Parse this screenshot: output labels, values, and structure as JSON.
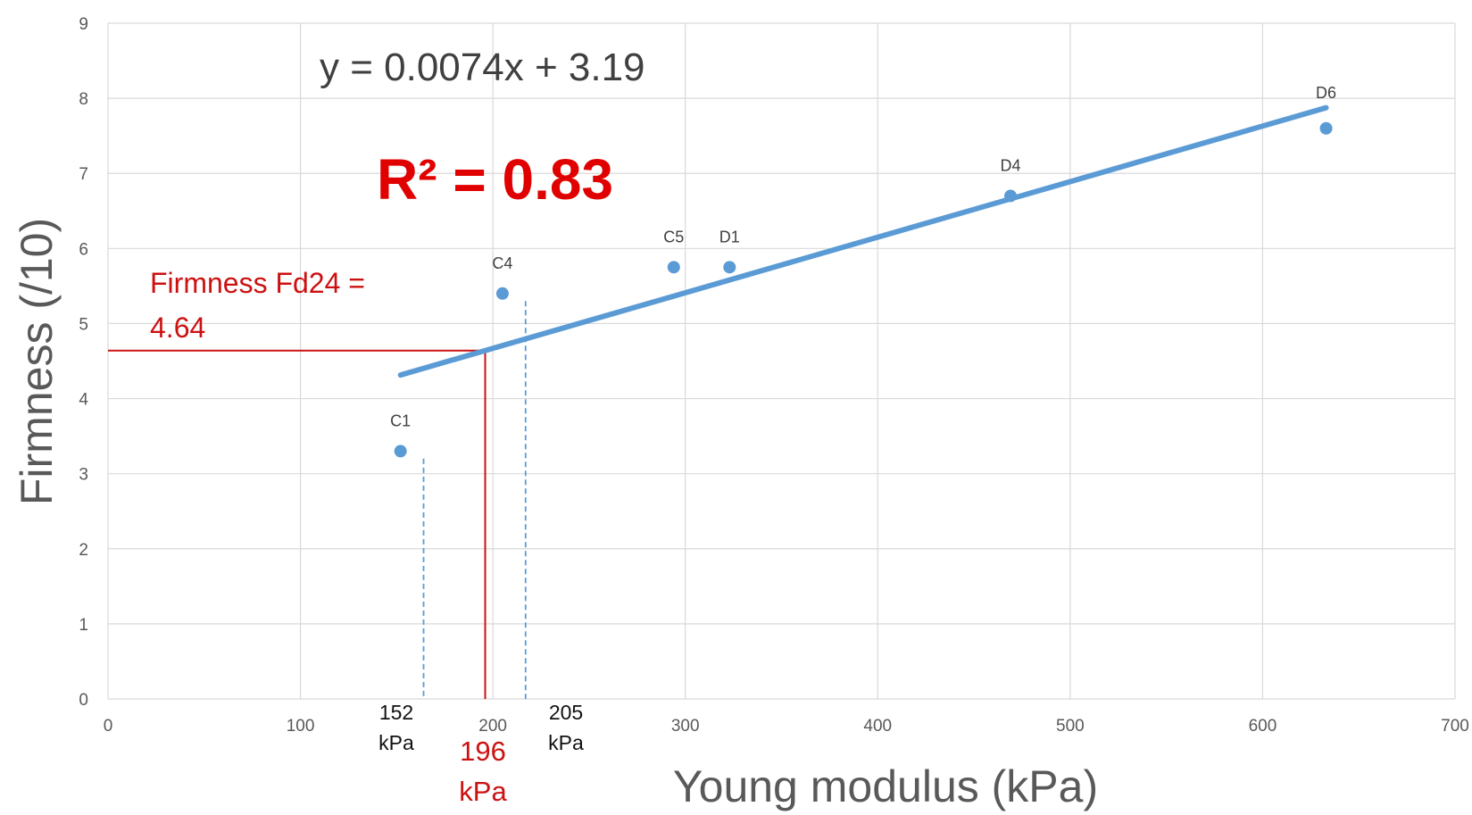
{
  "chart_data": {
    "type": "scatter",
    "xlabel": "Young modulus (kPa)",
    "ylabel": "Firmness (/10)",
    "xlim": [
      0,
      700
    ],
    "ylim": [
      0,
      9
    ],
    "x_ticks": [
      "0",
      "100",
      "200",
      "300",
      "400",
      "500",
      "600",
      "700"
    ],
    "y_ticks": [
      "0",
      "1",
      "2",
      "3",
      "4",
      "5",
      "6",
      "7",
      "8",
      "9"
    ],
    "grid": true,
    "points": [
      {
        "label": "C1",
        "x": 152,
        "y": 3.3
      },
      {
        "label": "C4",
        "x": 205,
        "y": 5.4
      },
      {
        "label": "C5",
        "x": 294,
        "y": 5.75
      },
      {
        "label": "D1",
        "x": 323,
        "y": 5.75
      },
      {
        "label": "D4",
        "x": 469,
        "y": 6.7
      },
      {
        "label": "D6",
        "x": 633,
        "y": 7.6
      }
    ],
    "trendline": {
      "slope": 0.0074,
      "intercept": 3.19,
      "x_range": [
        152,
        633
      ],
      "equation_text": "y = 0.0074x + 3.19",
      "r2_text": "R² = 0.83",
      "color": "#5b9bd5"
    },
    "annotations": {
      "firmness_line1": "Firmness Fd24 =",
      "firmness_line2": "4.64",
      "red_x_value": "196",
      "red_x_unit": "kPa",
      "left_value": "152",
      "left_unit": "kPa",
      "right_value": "205",
      "right_unit": "kPa",
      "crosshair_x": 196,
      "crosshair_y": 4.64,
      "dashed_x": [
        164,
        217
      ],
      "red_color": "#cc1111",
      "point_color": "#5b9bd5"
    }
  }
}
